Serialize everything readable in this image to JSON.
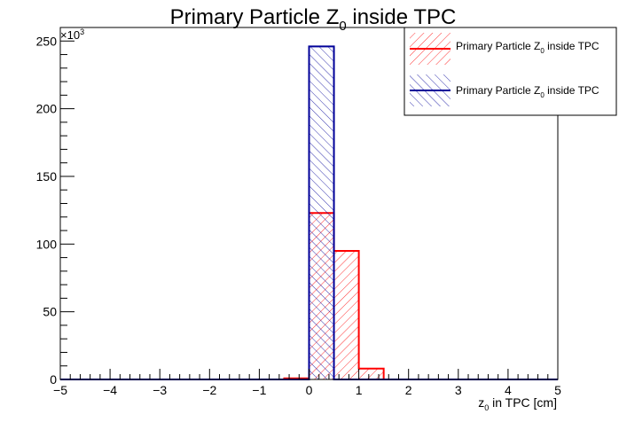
{
  "chart_data": {
    "type": "bar",
    "title_main": "Primary Particle Z",
    "title_sub": "0",
    "title_tail": " inside TPC",
    "xlabel_main": "z",
    "xlabel_sub": "0",
    "xlabel_tail": " in TPC [cm]",
    "y_exponent_base": "×10",
    "y_exponent_power": "3",
    "xlim": [
      -5,
      5
    ],
    "ylim": [
      0,
      260000
    ],
    "x_ticks": [
      -5,
      -4,
      -3,
      -2,
      -1,
      0,
      1,
      2,
      3,
      4,
      5
    ],
    "x_tick_labels": [
      "−5",
      "−4",
      "−3",
      "−2",
      "−1",
      "0",
      "1",
      "2",
      "3",
      "4",
      "5"
    ],
    "y_ticks": [
      0,
      50000,
      100000,
      150000,
      200000,
      250000
    ],
    "y_tick_labels": [
      "0",
      "50",
      "100",
      "150",
      "200",
      "250"
    ],
    "bin_edges": [
      -5,
      -4.5,
      -4,
      -3.5,
      -3,
      -2.5,
      -2,
      -1.5,
      -1,
      -0.5,
      0,
      0.5,
      1,
      1.5,
      2,
      2.5,
      3,
      3.5,
      4,
      4.5,
      5
    ],
    "series": [
      {
        "name": "Primary Particle Z₀ inside TPC",
        "legend_main": "Primary Particle Z",
        "legend_sub": "0",
        "legend_tail": " inside TPC",
        "color": "#ff0000",
        "hatch": "forward",
        "values": [
          0,
          0,
          0,
          0,
          0,
          0,
          0,
          0,
          0,
          800,
          123000,
          95000,
          8000,
          0,
          0,
          0,
          0,
          0,
          0,
          0
        ]
      },
      {
        "name": "Primary Particle Z₀ inside TPC",
        "legend_main": "Primary Particle Z",
        "legend_sub": "0",
        "legend_tail": " inside TPC",
        "color": "#000099",
        "hatch": "backward",
        "values": [
          0,
          0,
          0,
          0,
          0,
          0,
          0,
          0,
          0,
          0,
          246000,
          0,
          0,
          0,
          0,
          0,
          0,
          0,
          0,
          0
        ]
      }
    ],
    "legend_position": "top-right",
    "grid": false
  }
}
